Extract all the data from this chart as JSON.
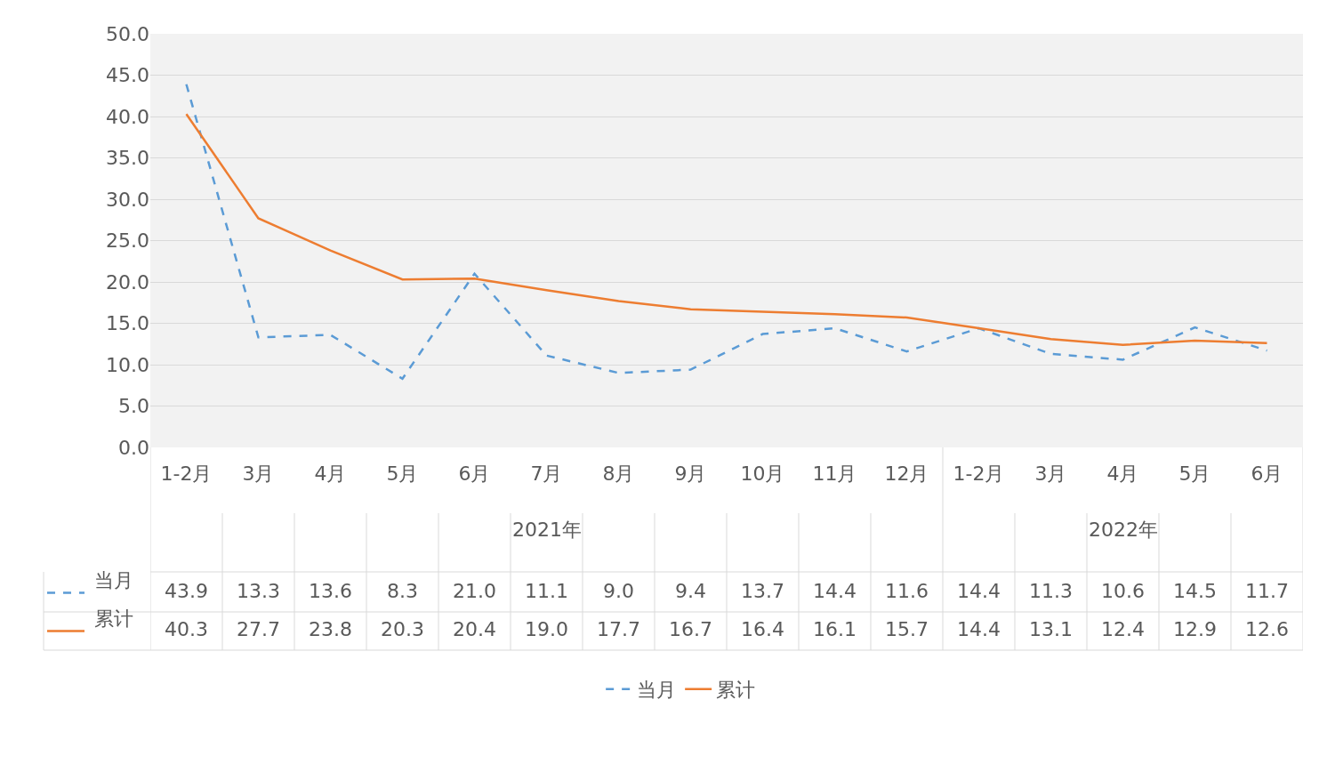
{
  "chart_data": {
    "type": "line",
    "categories": [
      "1-2月",
      "3月",
      "4月",
      "5月",
      "6月",
      "7月",
      "8月",
      "9月",
      "10月",
      "11月",
      "12月",
      "1-2月",
      "3月",
      "4月",
      "5月",
      "6月"
    ],
    "ylim": [
      0,
      50
    ],
    "yticks": [
      {
        "value": 0,
        "label": "0.0"
      },
      {
        "value": 5,
        "label": "5.0"
      },
      {
        "value": 10,
        "label": "10.0"
      },
      {
        "value": 15,
        "label": "15.0"
      },
      {
        "value": 20,
        "label": "20.0"
      },
      {
        "value": 25,
        "label": "25.0"
      },
      {
        "value": 30,
        "label": "30.0"
      },
      {
        "value": 35,
        "label": "35.0"
      },
      {
        "value": 40,
        "label": "40.0"
      },
      {
        "value": 45,
        "label": "45.0"
      },
      {
        "value": 50,
        "label": "50.0"
      }
    ],
    "series": [
      {
        "name": "当月",
        "color": "#5b9bd5",
        "line_style": "dashed",
        "values": [
          43.9,
          13.3,
          13.6,
          8.3,
          21.0,
          11.1,
          9.0,
          9.4,
          13.7,
          14.4,
          11.6,
          14.4,
          11.3,
          10.6,
          14.5,
          11.7
        ],
        "value_labels": [
          "43.9",
          "13.3",
          "13.6",
          "8.3",
          "21.0",
          "11.1",
          "9.0",
          "9.4",
          "13.7",
          "14.4",
          "11.6",
          "14.4",
          "11.3",
          "10.6",
          "14.5",
          "11.7"
        ]
      },
      {
        "name": "累计",
        "color": "#ed7d31",
        "line_style": "solid",
        "values": [
          40.3,
          27.7,
          23.8,
          20.3,
          20.4,
          19.0,
          17.7,
          16.7,
          16.4,
          16.1,
          15.7,
          14.4,
          13.1,
          12.4,
          12.9,
          12.6
        ],
        "value_labels": [
          "40.3",
          "27.7",
          "23.8",
          "20.3",
          "20.4",
          "19.0",
          "17.7",
          "16.7",
          "16.4",
          "16.1",
          "15.7",
          "14.4",
          "13.1",
          "12.4",
          "12.9",
          "12.6"
        ]
      }
    ],
    "annotations": [
      "2021年",
      "2022年"
    ],
    "grid": true,
    "legend": "bottom",
    "marker": "none"
  }
}
